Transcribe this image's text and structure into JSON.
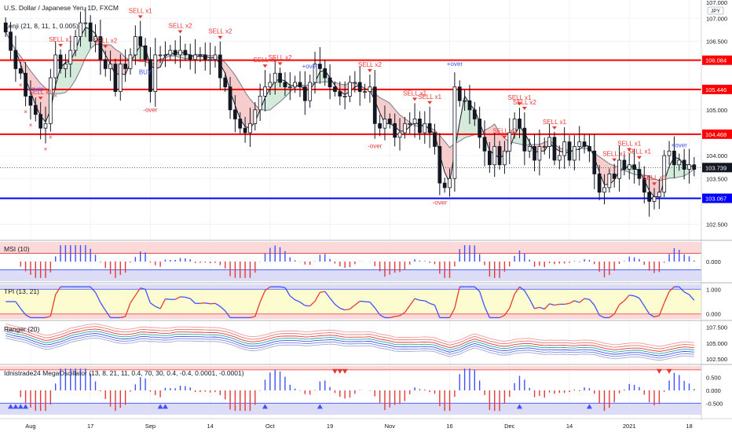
{
  "chart_data": [
    {
      "type": "candlestick",
      "title": "U.S. Dollar / Japanese Yen, 1D, FXCM",
      "subtitle": "Kenji (21, 8, 11, 1, 0.005)",
      "currency_badge": "JPY",
      "ylim": [
        102.2,
        107.4
      ],
      "yticks": [
        "107.000",
        "106.500",
        "105.500",
        "105.000",
        "104.000",
        "103.500",
        "102.500"
      ],
      "ytick_values": [
        107.0,
        106.5,
        105.5,
        105.0,
        104.0,
        103.5,
        102.5
      ],
      "top_label": "107.000",
      "last_price": {
        "value": 103.739,
        "label": "103.739"
      },
      "horizontal_lines": [
        {
          "value": 106.084,
          "label": "106.084",
          "color": "#ff0000"
        },
        {
          "value": 105.446,
          "label": "105.446",
          "color": "#ff0000"
        },
        {
          "value": 104.468,
          "label": "104.468",
          "color": "#ff0000"
        },
        {
          "value": 103.067,
          "label": "103.067",
          "color": "#0000ff"
        }
      ],
      "x_ticks": [
        "Aug",
        "17",
        "Sep",
        "14",
        "Oct",
        "19",
        "Nov",
        "16",
        "Dec",
        "14",
        "2021",
        "18"
      ],
      "closes": [
        106.7,
        106.3,
        105.9,
        105.8,
        105.3,
        105.1,
        104.9,
        104.6,
        104.7,
        105.7,
        106.2,
        105.9,
        106.0,
        106.3,
        106.6,
        106.9,
        106.9,
        106.5,
        106.6,
        106.1,
        105.9,
        106.0,
        105.4,
        106.0,
        105.9,
        106.2,
        106.6,
        106.4,
        106.1,
        105.4,
        106.2,
        106.2,
        106.2,
        106.3,
        106.2,
        106.3,
        106.2,
        106.1,
        106.2,
        106.2,
        106.1,
        106.1,
        106.2,
        105.7,
        105.5,
        105.0,
        104.8,
        104.6,
        104.5,
        104.7,
        105.0,
        105.3,
        105.5,
        105.6,
        105.8,
        105.6,
        105.5,
        105.5,
        105.6,
        105.5,
        105.2,
        105.6,
        106.0,
        105.9,
        105.7,
        105.5,
        105.4,
        105.3,
        105.3,
        105.6,
        105.6,
        105.4,
        105.4,
        105.5,
        104.7,
        104.6,
        104.8,
        104.7,
        104.4,
        104.5,
        104.7,
        104.7,
        104.8,
        104.5,
        104.7,
        104.5,
        104.2,
        103.4,
        103.3,
        103.5,
        105.5,
        105.2,
        105.2,
        105.0,
        104.8,
        104.4,
        104.1,
        103.8,
        104.2,
        103.8,
        104.1,
        104.5,
        104.8,
        104.6,
        104.1,
        104.2,
        103.9,
        104.2,
        104.2,
        104.4,
        103.9,
        104.0,
        104.3,
        103.9,
        104.2,
        104.3,
        104.2,
        104.1,
        103.6,
        103.2,
        103.3,
        103.6,
        103.5,
        103.9,
        103.7,
        103.8,
        103.7,
        103.5,
        103.2,
        103.0,
        103.1,
        103.2,
        104.0,
        104.1,
        103.8,
        103.9,
        103.7,
        103.8,
        103.7
      ],
      "signals_sell": [
        "SELL x1",
        "SELL x1",
        "SELL x2",
        "SELL x1",
        "SELL x2",
        "SELL x2",
        "SELL x1",
        "SELL x2",
        "SELL x2",
        "SELL x1",
        "SELL x1",
        "SELL x2",
        "SELL x1",
        "SELL x2",
        "SELL x1",
        "SELL x1",
        "SELL x1",
        "SELL x1",
        "SELL x1"
      ],
      "signals_minus_over": [
        "-over",
        "-over",
        "-over"
      ],
      "signals_plus_over": [
        "+over",
        "+over",
        "+over",
        "+over"
      ],
      "signals_buy": [
        "BUY"
      ],
      "cross_marker": "×"
    },
    {
      "type": "bar",
      "title": "MSI (10)",
      "yticks": [
        "0.000"
      ],
      "ytick_values": [
        0
      ],
      "ylim": [
        -1.2,
        1.2
      ],
      "band": [
        0.5,
        -0.5
      ]
    },
    {
      "type": "line",
      "title": "TPI (13, 21)",
      "yticks": [
        "1.000",
        "0.000"
      ],
      "ytick_values": [
        1,
        0
      ],
      "ylim": [
        -0.2,
        1.2
      ]
    },
    {
      "type": "line",
      "title": "Ranger (20)",
      "yticks": [
        "107.500",
        "105.000",
        "102.500"
      ],
      "ytick_values": [
        107.5,
        105.0,
        102.5
      ],
      "ylim": [
        101.9,
        108.3
      ]
    },
    {
      "type": "bar",
      "title": "Idnistrade24 MegaOscillator (13, 8, 21, 11, 0.4, 70, 30, 0.4, -0.4, 0.0001, -0.0001)",
      "yticks": [
        "0.500",
        "0.000",
        "-0.500"
      ],
      "ytick_values": [
        0.5,
        0.0,
        -0.5
      ],
      "ylim": [
        -0.95,
        0.95
      ],
      "band": [
        0.8,
        -0.5
      ]
    }
  ],
  "colors": {
    "up": "#26a69a",
    "candle": "#131722",
    "sell": "#e53935",
    "buy": "#3f51ff",
    "cloud": "#f5c7c7",
    "cloud_green": "#cfe8d6",
    "red_band": "#fbd9d9",
    "blue_band": "#dcdcf7",
    "yellow_band": "#fdfbd0"
  }
}
